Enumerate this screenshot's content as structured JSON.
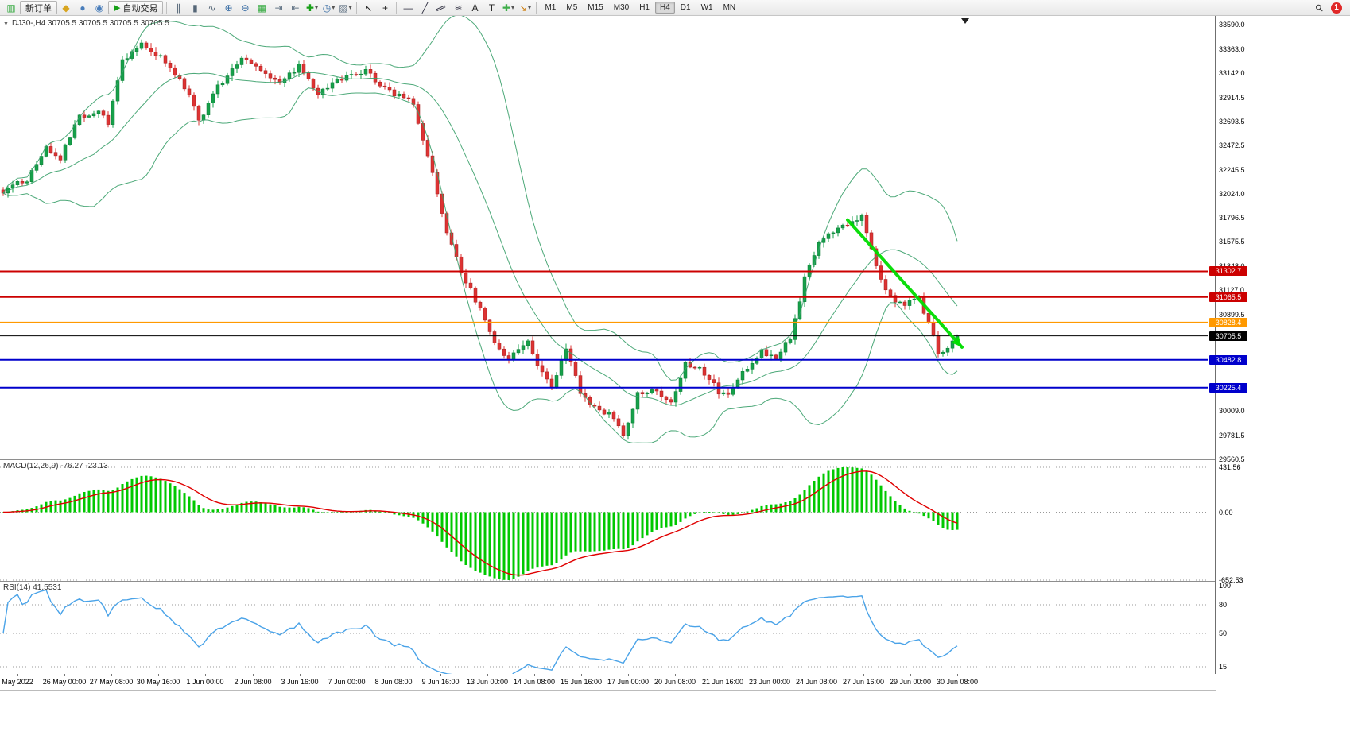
{
  "toolbar": {
    "new_order_label": "新订单",
    "autotrade_label": "自动交易",
    "timeframes": [
      "M1",
      "M5",
      "M15",
      "M30",
      "H1",
      "H4",
      "D1",
      "W1",
      "MN"
    ],
    "active_timeframe": "H4",
    "notification_count": "1",
    "items": [
      {
        "type": "icon",
        "name": "chart-window-icon",
        "glyph": "▥",
        "color": "#3fae4a"
      },
      {
        "type": "button",
        "name": "new-order-button",
        "label": "新订单"
      },
      {
        "type": "icon",
        "name": "profiles-icon",
        "glyph": "◆",
        "color": "#d8a520"
      },
      {
        "type": "icon",
        "name": "market-watch-icon",
        "glyph": "●",
        "color": "#4a7ebb"
      },
      {
        "type": "icon",
        "name": "data-window-icon",
        "glyph": "◉",
        "color": "#4a7ebb"
      },
      {
        "type": "button",
        "name": "autotrade-button",
        "label": "自动交易",
        "glyph": "▶",
        "color": "#18a018"
      },
      {
        "type": "sep"
      },
      {
        "type": "icon",
        "name": "bar-chart-icon",
        "glyph": "∥",
        "color": "#556677"
      },
      {
        "type": "icon",
        "name": "candlestick-chart-icon",
        "glyph": "▮",
        "color": "#556677"
      },
      {
        "type": "icon",
        "name": "line-chart-icon",
        "glyph": "∿",
        "color": "#556677"
      },
      {
        "type": "icon",
        "name": "zoom-in-icon",
        "glyph": "⊕",
        "color": "#3a6ea5"
      },
      {
        "type": "icon",
        "name": "zoom-out-icon",
        "glyph": "⊖",
        "color": "#3a6ea5"
      },
      {
        "type": "icon",
        "name": "tile-windows-icon",
        "glyph": "▦",
        "color": "#3fae4a"
      },
      {
        "type": "icon",
        "name": "auto-scroll-icon",
        "glyph": "⇥",
        "color": "#667788"
      },
      {
        "type": "icon",
        "name": "chart-shift-icon",
        "glyph": "⇤",
        "color": "#667788"
      },
      {
        "type": "icon",
        "name": "add-indicator-icon",
        "glyph": "✚",
        "color": "#18a018",
        "dropdown": true
      },
      {
        "type": "icon",
        "name": "periods-icon",
        "glyph": "◷",
        "color": "#3a6ea5",
        "dropdown": true
      },
      {
        "type": "icon",
        "name": "templates-icon",
        "glyph": "▨",
        "color": "#667788",
        "dropdown": true
      },
      {
        "type": "sep"
      },
      {
        "type": "icon",
        "name": "cursor-icon",
        "glyph": "↖",
        "color": "#222222"
      },
      {
        "type": "icon",
        "name": "crosshair-icon",
        "glyph": "+",
        "color": "#222222"
      },
      {
        "type": "sep"
      },
      {
        "type": "icon",
        "name": "horizontal-line-icon",
        "glyph": "―",
        "color": "#333344"
      },
      {
        "type": "icon",
        "name": "trendline-icon",
        "glyph": "╱",
        "color": "#333344"
      },
      {
        "type": "icon",
        "name": "channel-icon",
        "glyph": "∥",
        "color": "#333344",
        "rotate": 65
      },
      {
        "type": "icon",
        "name": "fibonacci-icon",
        "glyph": "≋",
        "color": "#333344"
      },
      {
        "type": "icon",
        "name": "text-icon",
        "glyph": "A",
        "color": "#222222"
      },
      {
        "type": "icon",
        "name": "label-icon",
        "glyph": "T",
        "color": "#222222"
      },
      {
        "type": "icon",
        "name": "shapes-icon",
        "glyph": "✚",
        "color": "#3fae4a",
        "dropdown": true
      },
      {
        "type": "icon",
        "name": "arrows-icon",
        "glyph": "↘",
        "color": "#cc7700",
        "dropdown": true
      },
      {
        "type": "sep"
      },
      {
        "type": "timeframes"
      },
      {
        "type": "spacer"
      },
      {
        "type": "icon",
        "name": "search-icon",
        "glyph": "⚲",
        "color": "#333333",
        "rotate": -45
      },
      {
        "type": "badge",
        "name": "notification-badge"
      }
    ]
  },
  "chart": {
    "title_overlay": "DJ30-,H4 30705.5 30705.5 30705.5 30705.5",
    "macd_overlay": "MACD(12,26,9) -76.27 -23.13",
    "rsi_overlay": "RSI(14) 41.5531"
  },
  "chart_data": [
    {
      "type": "candlestick",
      "symbol": "DJ30-",
      "timeframe": "H4",
      "last_price": 30705.5,
      "ylim": [
        29560.5,
        33590.0
      ],
      "price_ticks": [
        "33590.0",
        "33363.0",
        "33142.0",
        "32914.5",
        "32693.5",
        "32472.5",
        "32245.5",
        "32024.0",
        "31796.5",
        "31575.5",
        "31348.0",
        "31127.0",
        "30899.5",
        "30009.0",
        "29781.5",
        "29560.5"
      ],
      "hlines": [
        {
          "price": "31302.7",
          "color": "#cc0000",
          "width": 2
        },
        {
          "price": "31065.5",
          "color": "#cc0000",
          "width": 2
        },
        {
          "price": "30828.4",
          "color": "#ff9900",
          "width": 2
        },
        {
          "price": "30705.5",
          "color": "#000000",
          "width": 1
        },
        {
          "price": "30482.8",
          "color": "#0000cc",
          "width": 2
        },
        {
          "price": "30225.4",
          "color": "#0000cc",
          "width": 2
        }
      ],
      "bollinger": {
        "period": 20,
        "deviation": 2,
        "color": "#3aa06a"
      },
      "colors": {
        "up": "#16a04a",
        "down": "#dd3333",
        "up_stroke": "#0b7a35",
        "down_stroke": "#a02020"
      },
      "candle_count": 201,
      "candle_anchors": [
        [
          0,
          32050
        ],
        [
          5,
          32150
        ],
        [
          9,
          32450
        ],
        [
          12,
          32350
        ],
        [
          16,
          32750
        ],
        [
          20,
          32780
        ],
        [
          22,
          32690
        ],
        [
          25,
          33250
        ],
        [
          29,
          33400
        ],
        [
          33,
          33300
        ],
        [
          37,
          33080
        ],
        [
          40,
          32850
        ],
        [
          41,
          32680
        ],
        [
          44,
          32950
        ],
        [
          50,
          33300
        ],
        [
          55,
          33150
        ],
        [
          58,
          33050
        ],
        [
          62,
          33200
        ],
        [
          66,
          32950
        ],
        [
          71,
          33100
        ],
        [
          76,
          33150
        ],
        [
          80,
          33000
        ],
        [
          84,
          32900
        ],
        [
          86,
          32860
        ],
        [
          90,
          32200
        ],
        [
          93,
          31650
        ],
        [
          96,
          31300
        ],
        [
          100,
          30950
        ],
        [
          103,
          30650
        ],
        [
          106,
          30480
        ],
        [
          110,
          30660
        ],
        [
          113,
          30350
        ],
        [
          115,
          30240
        ],
        [
          118,
          30600
        ],
        [
          121,
          30180
        ],
        [
          125,
          30000
        ],
        [
          128,
          29960
        ],
        [
          130,
          29800
        ],
        [
          133,
          30160
        ],
        [
          136,
          30220
        ],
        [
          140,
          30090
        ],
        [
          143,
          30460
        ],
        [
          146,
          30400
        ],
        [
          150,
          30190
        ],
        [
          152,
          30140
        ],
        [
          155,
          30360
        ],
        [
          159,
          30560
        ],
        [
          162,
          30510
        ],
        [
          165,
          30680
        ],
        [
          168,
          31230
        ],
        [
          171,
          31560
        ],
        [
          174,
          31660
        ],
        [
          178,
          31760
        ],
        [
          180,
          31830
        ],
        [
          183,
          31340
        ],
        [
          186,
          31060
        ],
        [
          189,
          30990
        ],
        [
          192,
          31060
        ],
        [
          195,
          30700
        ],
        [
          196,
          30520
        ],
        [
          198,
          30610
        ],
        [
          200,
          30705.5
        ]
      ],
      "annotations": [
        {
          "type": "arrow",
          "from": [
            177,
            31780
          ],
          "to": [
            200,
            30600
          ],
          "color": "#00dd00"
        }
      ]
    },
    {
      "type": "bar",
      "name": "MACD",
      "params": "12,26,9",
      "current_macd": -76.27,
      "current_signal": -23.13,
      "ylim": [
        -652.53,
        431.56
      ],
      "ticks": [
        "431.56",
        "0.00",
        "-652.53"
      ],
      "histogram_color": "#00c800",
      "signal_color": "#e00000",
      "derived_from": "EMA12-EMA26 of candlestick closes, signal EMA9"
    },
    {
      "type": "line",
      "name": "RSI",
      "period": 14,
      "current": 41.5531,
      "ylim": [
        0,
        100
      ],
      "ticks": [
        "100",
        "80",
        "50",
        "15"
      ],
      "levels": [
        80,
        50,
        15
      ],
      "color": "#4aa3e8"
    }
  ],
  "time_axis": [
    "May 2022",
    "26 May 00:00",
    "27 May 08:00",
    "30 May 16:00",
    "1 Jun 00:00",
    "2 Jun 08:00",
    "3 Jun 16:00",
    "7 Jun 00:00",
    "8 Jun 08:00",
    "9 Jun 16:00",
    "13 Jun 00:00",
    "14 Jun 08:00",
    "15 Jun 16:00",
    "17 Jun 00:00",
    "20 Jun 08:00",
    "21 Jun 16:00",
    "23 Jun 00:00",
    "24 Jun 08:00",
    "27 Jun 16:00",
    "29 Jun 00:00",
    "30 Jun 08:00"
  ]
}
